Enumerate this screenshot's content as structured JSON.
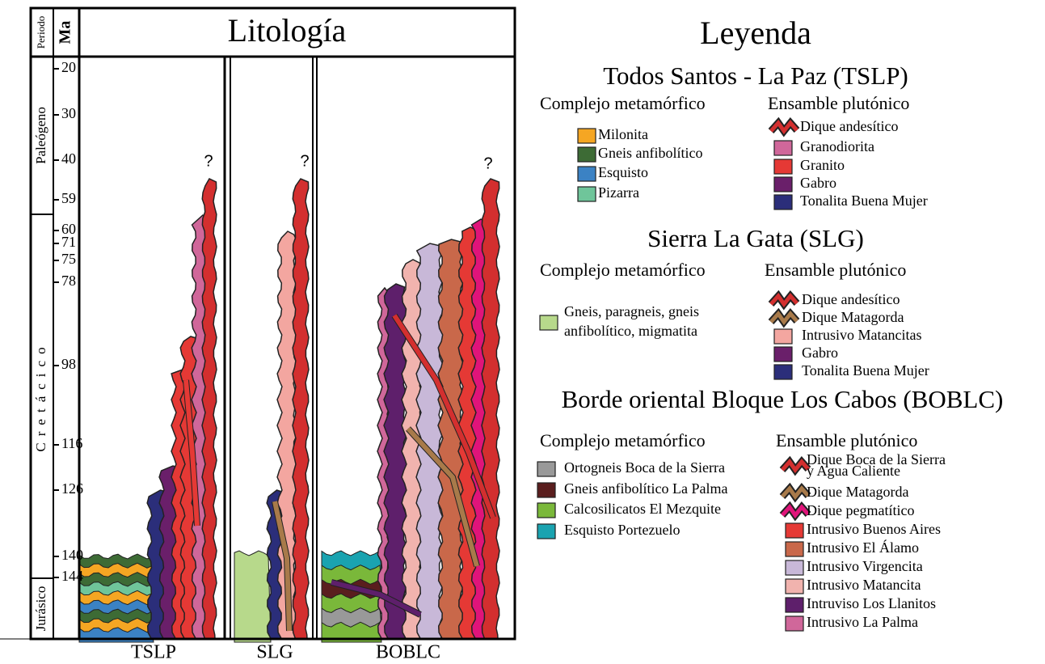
{
  "column_header": {
    "period": "Periodo",
    "ma": "Ma",
    "lithology": "Litología"
  },
  "periods": [
    "Paleógeno",
    "Cretácico",
    "Jurásico"
  ],
  "ma": [
    20,
    30,
    40,
    59,
    60,
    71,
    75,
    78,
    98,
    116,
    126,
    140,
    144
  ],
  "uncertain": [
    "?",
    "?",
    "?"
  ],
  "columns": [
    "TSLP",
    "SLG",
    "BOBLC"
  ],
  "legend": {
    "title": "Leyenda",
    "sections": [
      {
        "title": "Todos Santos - La Paz (TSLP)",
        "metamorphic": {
          "heading": "Complejo metamórfico",
          "items": [
            "Milonita",
            "Gneis anfibolítico",
            "Esquisto",
            "Pizarra"
          ]
        },
        "plutonic": {
          "heading": "Ensamble plutónico",
          "items": [
            "Dique andesítico",
            "Granodiorita",
            "Granito",
            "Gabro",
            "Tonalita Buena Mujer"
          ]
        }
      },
      {
        "title": "Sierra La Gata (SLG)",
        "metamorphic": {
          "heading": "Complejo metamórfico",
          "items": [
            [
              "Gneis, paragneis, gneis",
              "anfibolítico, migmatita"
            ]
          ]
        },
        "plutonic": {
          "heading": "Ensamble plutónico",
          "items": [
            "Dique andesítico",
            "Dique Matagorda",
            "Intrusivo Matancitas",
            "Gabro",
            "Tonalita Buena Mujer"
          ]
        }
      },
      {
        "title": "Borde oriental Bloque Los Cabos (BOBLC)",
        "metamorphic": {
          "heading": "Complejo metamórfico",
          "items": [
            "Ortogneis Boca de la Sierra",
            "Gneis anfibolítico La Palma",
            "Calcosilicatos El Mezquite",
            "Esquisto Portezuelo"
          ]
        },
        "plutonic": {
          "heading": "Ensamble plutónico",
          "items": [
            [
              "Dique Boca de la Sierra",
              "y Agua Caliente"
            ],
            "Dique Matagorda",
            "Dique pegmatítico",
            "Intrusivo Buenos Aires",
            "Intrusivo El Álamo",
            "Intrusivo Virgencita",
            "Intrusivo Matancita",
            "Intruviso Los Llanitos",
            "Intrusivo La Palma"
          ]
        }
      }
    ]
  }
}
